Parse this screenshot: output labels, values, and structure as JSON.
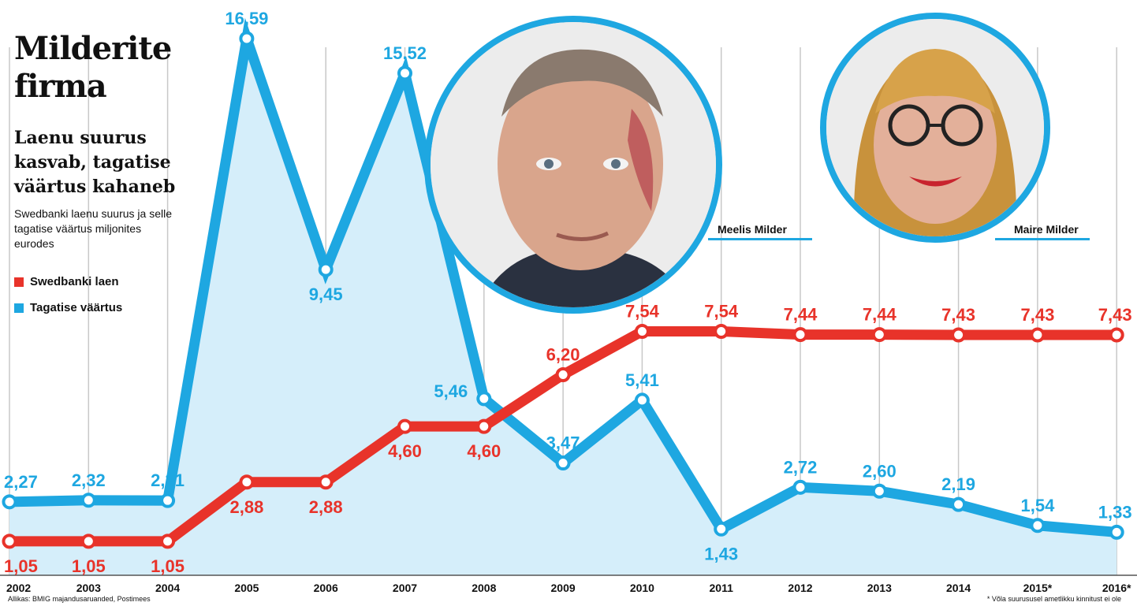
{
  "header": {
    "title": "Milderite firma",
    "subtitle": "Laenu suurus kasvab, tagatise väärtus kahaneb",
    "description": "Swedbanki laenu suurus ja selle tagatise väärtus miljonites eurodes"
  },
  "legend": {
    "loan": "Swedbanki laen",
    "collateral": "Tagatise väärtus"
  },
  "people": {
    "left": "Meelis Milder",
    "right": "Maire Milder"
  },
  "footer": {
    "source": "Allikas: BMIG majandusaruanded, Postimees",
    "note": "* Võla suurususel ametlikku kinnitust ei ole"
  },
  "colors": {
    "loan": "#e8332a",
    "collateral": "#1ea7e1",
    "area": "#d5eefa",
    "grid": "#c8c8c8"
  },
  "chart_data": {
    "type": "line",
    "x": [
      "2002",
      "2003",
      "2004",
      "2005",
      "2006",
      "2007",
      "2008",
      "2009",
      "2010",
      "2011",
      "2012",
      "2013",
      "2014",
      "2015*",
      "2016*"
    ],
    "series": [
      {
        "name": "Swedbanki laen",
        "values": [
          1.05,
          1.05,
          1.05,
          2.88,
          2.88,
          4.6,
          4.6,
          6.2,
          7.54,
          7.54,
          7.44,
          7.44,
          7.43,
          7.43,
          7.43
        ],
        "labels": [
          "1,05",
          "1,05",
          "1,05",
          "2,88",
          "2,88",
          "4,60",
          "4,60",
          "6,20",
          "7,54",
          "7,54",
          "7,44",
          "7,44",
          "7,43",
          "7,43",
          "7,43"
        ]
      },
      {
        "name": "Tagatise väärtus",
        "values": [
          2.27,
          2.32,
          2.31,
          16.59,
          9.45,
          15.52,
          5.46,
          3.47,
          5.41,
          1.43,
          2.72,
          2.6,
          2.19,
          1.54,
          1.33
        ],
        "labels": [
          "2,27",
          "2,32",
          "2,31",
          "16,59",
          "9,45",
          "15,52",
          "5,46",
          "3,47",
          "5,41",
          "1,43",
          "2,72",
          "2,60",
          "2,19",
          "1,54",
          "1,33"
        ]
      }
    ],
    "ylim": [
      0,
      17
    ],
    "grid": true,
    "legend_position": "left"
  }
}
